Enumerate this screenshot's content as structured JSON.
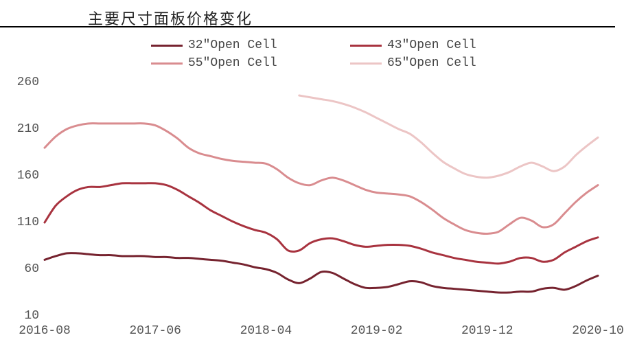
{
  "title": "主要尺寸面板价格变化",
  "chart": {
    "type": "line",
    "background_color": "#ffffff",
    "title_fontsize": 22,
    "ylim": [
      10,
      260
    ],
    "yticks": [
      10,
      60,
      110,
      160,
      210,
      260
    ],
    "xlim_index": [
      0,
      50
    ],
    "xtick_labels": [
      "2016-08",
      "2017-06",
      "2018-04",
      "2019-02",
      "2019-12",
      "2020-10"
    ],
    "xtick_positions": [
      0,
      10,
      20,
      30,
      40,
      50
    ],
    "axis_fontsize": 18,
    "line_width": 3,
    "legend_fontsize": 18,
    "legend_swatch_width": 46,
    "series": [
      {
        "name": "32\"Open Cell",
        "color": "#76232f",
        "values": [
          70,
          74,
          77,
          77,
          76,
          75,
          75,
          74,
          74,
          74,
          73,
          73,
          72,
          72,
          71,
          70,
          69,
          67,
          65,
          62,
          60,
          56,
          49,
          45,
          50,
          57,
          56,
          50,
          44,
          40,
          40,
          41,
          44,
          47,
          46,
          42,
          40,
          39,
          38,
          37,
          36,
          35,
          35,
          36,
          36,
          39,
          40,
          38,
          42,
          48,
          53
        ]
      },
      {
        "name": "43\"Open Cell",
        "color": "#a8333f",
        "values": [
          110,
          128,
          138,
          145,
          148,
          148,
          150,
          152,
          152,
          152,
          152,
          150,
          145,
          138,
          131,
          123,
          117,
          111,
          106,
          102,
          99,
          92,
          80,
          80,
          88,
          92,
          93,
          90,
          86,
          84,
          85,
          86,
          86,
          85,
          82,
          78,
          75,
          72,
          70,
          68,
          67,
          66,
          68,
          72,
          72,
          68,
          70,
          78,
          84,
          90,
          94
        ]
      },
      {
        "name": "55\"Open Cell",
        "color": "#d98c8f",
        "values": [
          190,
          202,
          210,
          214,
          216,
          216,
          216,
          216,
          216,
          216,
          214,
          208,
          200,
          190,
          184,
          181,
          178,
          176,
          175,
          174,
          173,
          167,
          158,
          152,
          150,
          155,
          158,
          155,
          150,
          145,
          142,
          141,
          140,
          138,
          132,
          124,
          115,
          108,
          102,
          99,
          98,
          100,
          108,
          115,
          112,
          105,
          108,
          120,
          132,
          142,
          150
        ]
      },
      {
        "name": "65\"Open Cell",
        "color": "#ecc5c5",
        "values": [
          null,
          null,
          null,
          null,
          null,
          null,
          null,
          null,
          null,
          null,
          null,
          null,
          null,
          null,
          null,
          null,
          null,
          null,
          null,
          null,
          null,
          null,
          null,
          246,
          244,
          242,
          240,
          237,
          233,
          228,
          222,
          216,
          210,
          205,
          196,
          185,
          175,
          168,
          162,
          159,
          158,
          160,
          164,
          170,
          174,
          170,
          165,
          170,
          182,
          192,
          201
        ]
      }
    ]
  }
}
